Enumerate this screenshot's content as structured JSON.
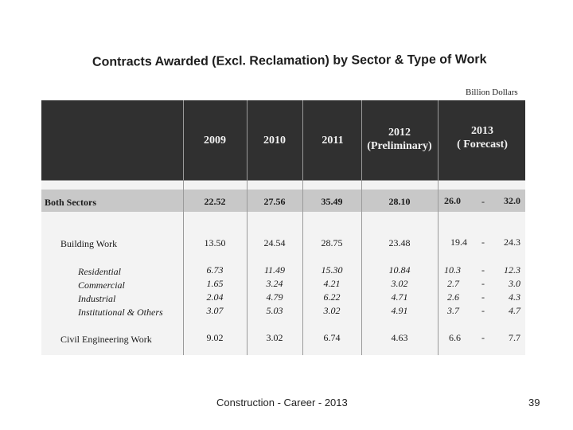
{
  "title": "Contracts Awarded (Excl. Reclamation) by Sector & Type of Work",
  "units": "Billion Dollars",
  "columns": {
    "c2009": "2009",
    "c2010": "2010",
    "c2011": "2011",
    "c2012_year": "2012",
    "c2012_note": "(Preliminary)",
    "c2013_year": "2013",
    "c2013_note": "( Forecast)"
  },
  "rows": [
    {
      "label": "Both Sectors",
      "v2009": "22.52",
      "v2010": "27.56",
      "v2011": "35.49",
      "v2012": "28.10",
      "f_low": "26.0",
      "dash": "-",
      "f_high": "32.0"
    },
    {
      "label": "Building Work",
      "v2009": "13.50",
      "v2010": "24.54",
      "v2011": "28.75",
      "v2012": "23.48",
      "f_low": "19.4",
      "dash": "-",
      "f_high": "24.3"
    },
    {
      "label": "Residential",
      "v2009": "6.73",
      "v2010": "11.49",
      "v2011": "15.30",
      "v2012": "10.84",
      "f_low": "10.3",
      "dash": "-",
      "f_high": "12.3"
    },
    {
      "label": "Commercial",
      "v2009": "1.65",
      "v2010": "3.24",
      "v2011": "4.21",
      "v2012": "3.02",
      "f_low": "2.7",
      "dash": "-",
      "f_high": "3.0"
    },
    {
      "label": "Industrial",
      "v2009": "2.04",
      "v2010": "4.79",
      "v2011": "6.22",
      "v2012": "4.71",
      "f_low": "2.6",
      "dash": "-",
      "f_high": "4.3"
    },
    {
      "label": "Institutional & Others",
      "v2009": "3.07",
      "v2010": "5.03",
      "v2011": "3.02",
      "v2012": "4.91",
      "f_low": "3.7",
      "dash": "-",
      "f_high": "4.7"
    },
    {
      "label": "Civil Engineering Work",
      "v2009": "9.02",
      "v2010": "3.02",
      "v2011": "6.74",
      "v2012": "4.63",
      "f_low": "6.6",
      "dash": "-",
      "f_high": "7.7"
    }
  ],
  "footer": {
    "text": "Construction - Career - 2013",
    "page": "39"
  }
}
